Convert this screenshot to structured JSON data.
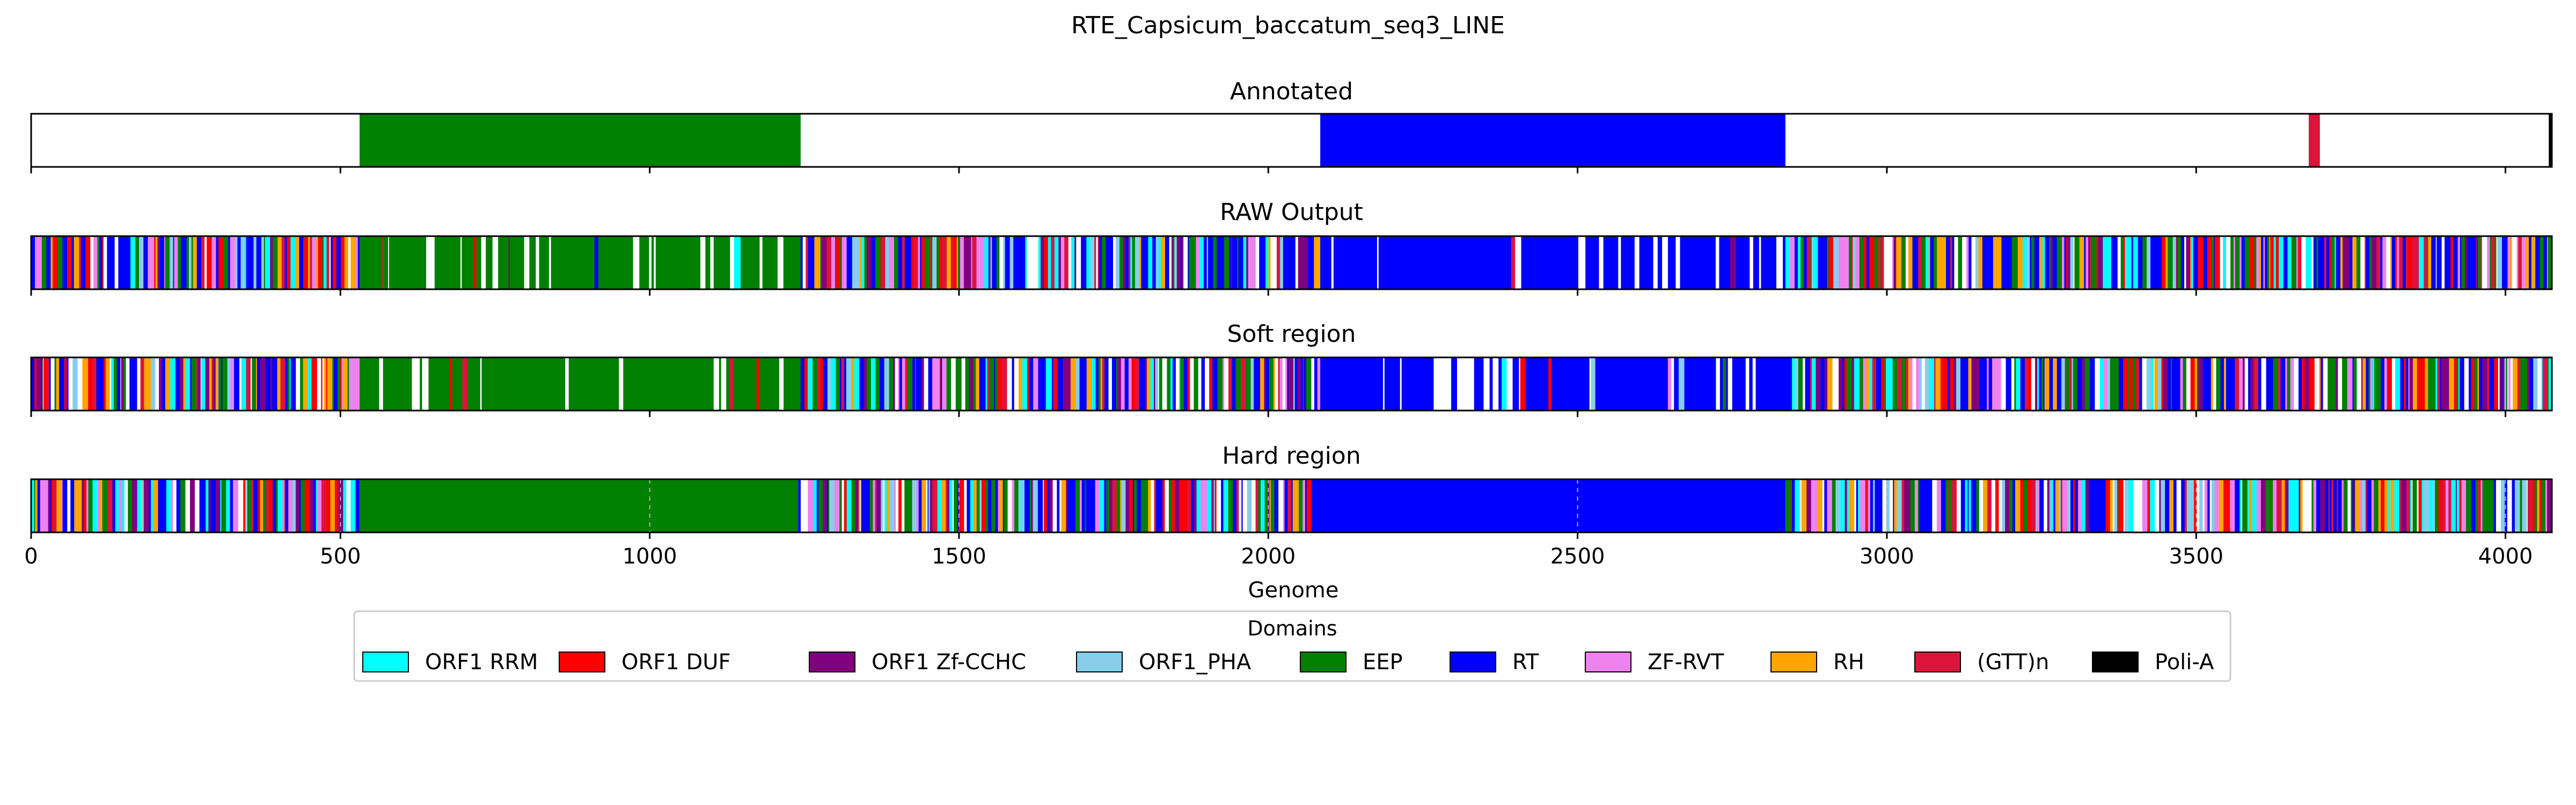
{
  "figure": {
    "title": "RTE_Capsicum_baccatum_seq3_LINE"
  },
  "chart_data": {
    "type": "track",
    "xlabel": "Genome",
    "xlim": [
      0,
      4075
    ],
    "x_ticks": [
      0,
      500,
      1000,
      1500,
      2000,
      2500,
      3000,
      3500,
      4000
    ],
    "tracks": [
      {
        "title": "Annotated",
        "segments": [
          {
            "start": 531,
            "end": 1244,
            "domain": "EEP"
          },
          {
            "start": 2084,
            "end": 2836,
            "domain": "RT"
          },
          {
            "start": 3682,
            "end": 3700,
            "domain": "(GTT)n"
          },
          {
            "start": 4070,
            "end": 4075,
            "domain": "Poli-A"
          }
        ]
      },
      {
        "title": "RAW Output",
        "pattern": "fragmented",
        "regions": [
          {
            "start": 0,
            "end": 531,
            "dominant": "mixed"
          },
          {
            "start": 531,
            "end": 1244,
            "dominant": "EEP"
          },
          {
            "start": 1244,
            "end": 2084,
            "dominant": "mixed"
          },
          {
            "start": 2084,
            "end": 2836,
            "dominant": "RT"
          },
          {
            "start": 2836,
            "end": 4075,
            "dominant": "mixed"
          }
        ]
      },
      {
        "title": "Soft region",
        "pattern": "fragmented",
        "regions": [
          {
            "start": 0,
            "end": 531,
            "dominant": "mixed"
          },
          {
            "start": 531,
            "end": 1244,
            "dominant": "EEP"
          },
          {
            "start": 1244,
            "end": 2084,
            "dominant": "mixed"
          },
          {
            "start": 2084,
            "end": 2836,
            "dominant": "RT"
          },
          {
            "start": 2836,
            "end": 4075,
            "dominant": "mixed"
          }
        ]
      },
      {
        "title": "Hard region",
        "pattern": "solid-core",
        "dashed_gridlines": true,
        "regions": [
          {
            "start": 0,
            "end": 531,
            "dominant": "mixed"
          },
          {
            "start": 531,
            "end": 1240,
            "dominant": "EEP"
          },
          {
            "start": 1240,
            "end": 2075,
            "dominant": "mixed"
          },
          {
            "start": 2075,
            "end": 2836,
            "dominant": "RT"
          },
          {
            "start": 2836,
            "end": 4075,
            "dominant": "mixed"
          }
        ]
      }
    ],
    "legend": {
      "title": "Domains",
      "placement": "bottom-center",
      "items": [
        {
          "label": "ORF1 RRM",
          "color": "#00ffff"
        },
        {
          "label": "ORF1 DUF",
          "color": "#ff0000"
        },
        {
          "label": "ORF1 Zf-CCHC",
          "color": "#800080"
        },
        {
          "label": "ORF1_PHA",
          "color": "#87ceeb"
        },
        {
          "label": "EEP",
          "color": "#008000"
        },
        {
          "label": "RT",
          "color": "#0000ff"
        },
        {
          "label": "ZF-RVT",
          "color": "#ee82ee"
        },
        {
          "label": "RH",
          "color": "#ffa500"
        },
        {
          "label": "(GTT)n",
          "color": "#dc143c"
        },
        {
          "label": "Poli-A",
          "color": "#000000"
        }
      ]
    }
  }
}
